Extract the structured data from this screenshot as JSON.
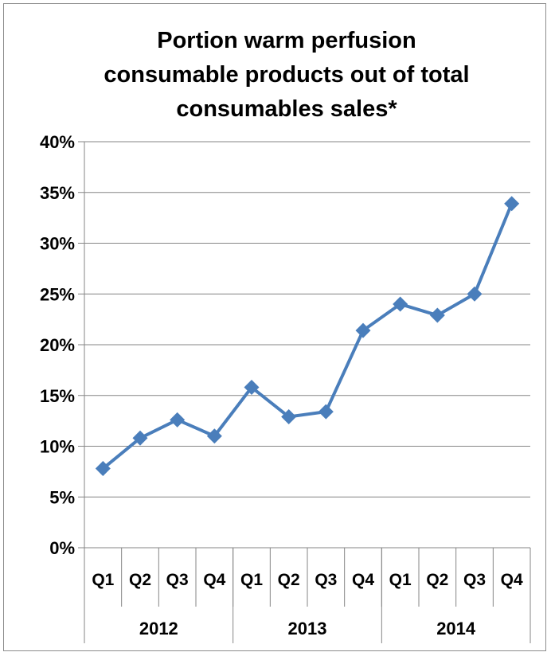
{
  "chart_data": {
    "type": "line",
    "title": "Portion warm perfusion consumable products out of total consumables sales*",
    "title_lines": [
      "Portion warm perfusion",
      "consumable products out of total",
      "consumables sales*"
    ],
    "categories": [
      "Q1",
      "Q2",
      "Q3",
      "Q4",
      "Q1",
      "Q2",
      "Q3",
      "Q4",
      "Q1",
      "Q2",
      "Q3",
      "Q4"
    ],
    "year_groups": [
      {
        "label": "2012",
        "span": 4
      },
      {
        "label": "2013",
        "span": 4
      },
      {
        "label": "2014",
        "span": 4
      }
    ],
    "series": [
      {
        "values": [
          7.8,
          10.8,
          12.6,
          11.0,
          15.8,
          12.9,
          13.4,
          21.4,
          24.0,
          22.9,
          25.0,
          33.9
        ]
      }
    ],
    "ylim": [
      0,
      40
    ],
    "yticks": [
      0,
      5,
      10,
      15,
      20,
      25,
      30,
      35,
      40
    ],
    "ytick_labels": [
      "0%",
      "5%",
      "10%",
      "15%",
      "20%",
      "25%",
      "30%",
      "35%",
      "40%"
    ],
    "xlabel": "",
    "ylabel": "",
    "grid": true,
    "legend": "none",
    "colors": {
      "series": "#4a7ebb",
      "grid": "#868686",
      "axis": "#868686",
      "frame": "#8c8c8c"
    },
    "marker": "diamond"
  }
}
